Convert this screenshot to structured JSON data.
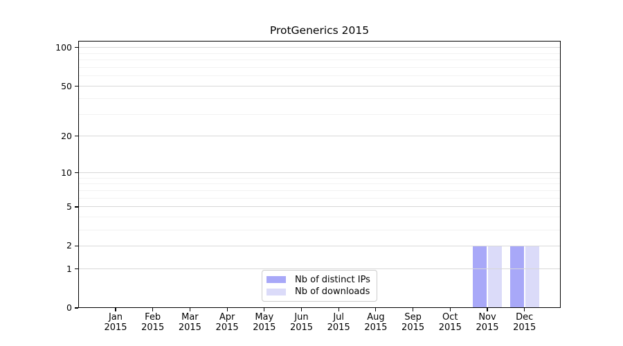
{
  "figure": {
    "background": "#ffffff"
  },
  "chart_data": {
    "type": "bar",
    "title": "ProtGenerics 2015",
    "xlabel": "",
    "ylabel": "",
    "x_categories": [
      "Jan",
      "Feb",
      "Mar",
      "Apr",
      "May",
      "Jun",
      "Jul",
      "Aug",
      "Sep",
      "Oct",
      "Nov",
      "Dec"
    ],
    "x_year": "2015",
    "series": [
      {
        "name": "Nb of distinct IPs",
        "color": "#a8a8f8",
        "values": [
          0,
          0,
          0,
          0,
          0,
          0,
          0,
          0,
          0,
          0,
          2,
          2
        ]
      },
      {
        "name": "Nb of downloads",
        "color": "#dbdbf9",
        "values": [
          0,
          0,
          0,
          0,
          0,
          0,
          0,
          0,
          0,
          0,
          2,
          2
        ]
      }
    ],
    "yscale": "log1p",
    "ylim": [
      0,
      113
    ],
    "y_ticks": [
      0,
      1,
      2,
      5,
      10,
      20,
      50,
      100
    ],
    "y_tick_labels": [
      "0",
      "1",
      "2",
      "5",
      "10",
      "20",
      "50",
      "100"
    ],
    "y_minor_grid": [
      3,
      4,
      6,
      7,
      8,
      9,
      30,
      40,
      60,
      70,
      80,
      90
    ],
    "grid": "horizontal",
    "legend_position": "inside-bottom-center",
    "colors": {
      "major_grid": "#d8d8d8",
      "minor_grid": "#f2f2f2",
      "spine": "#000000",
      "text": "#000000",
      "legend_border": "#cccccc"
    }
  }
}
